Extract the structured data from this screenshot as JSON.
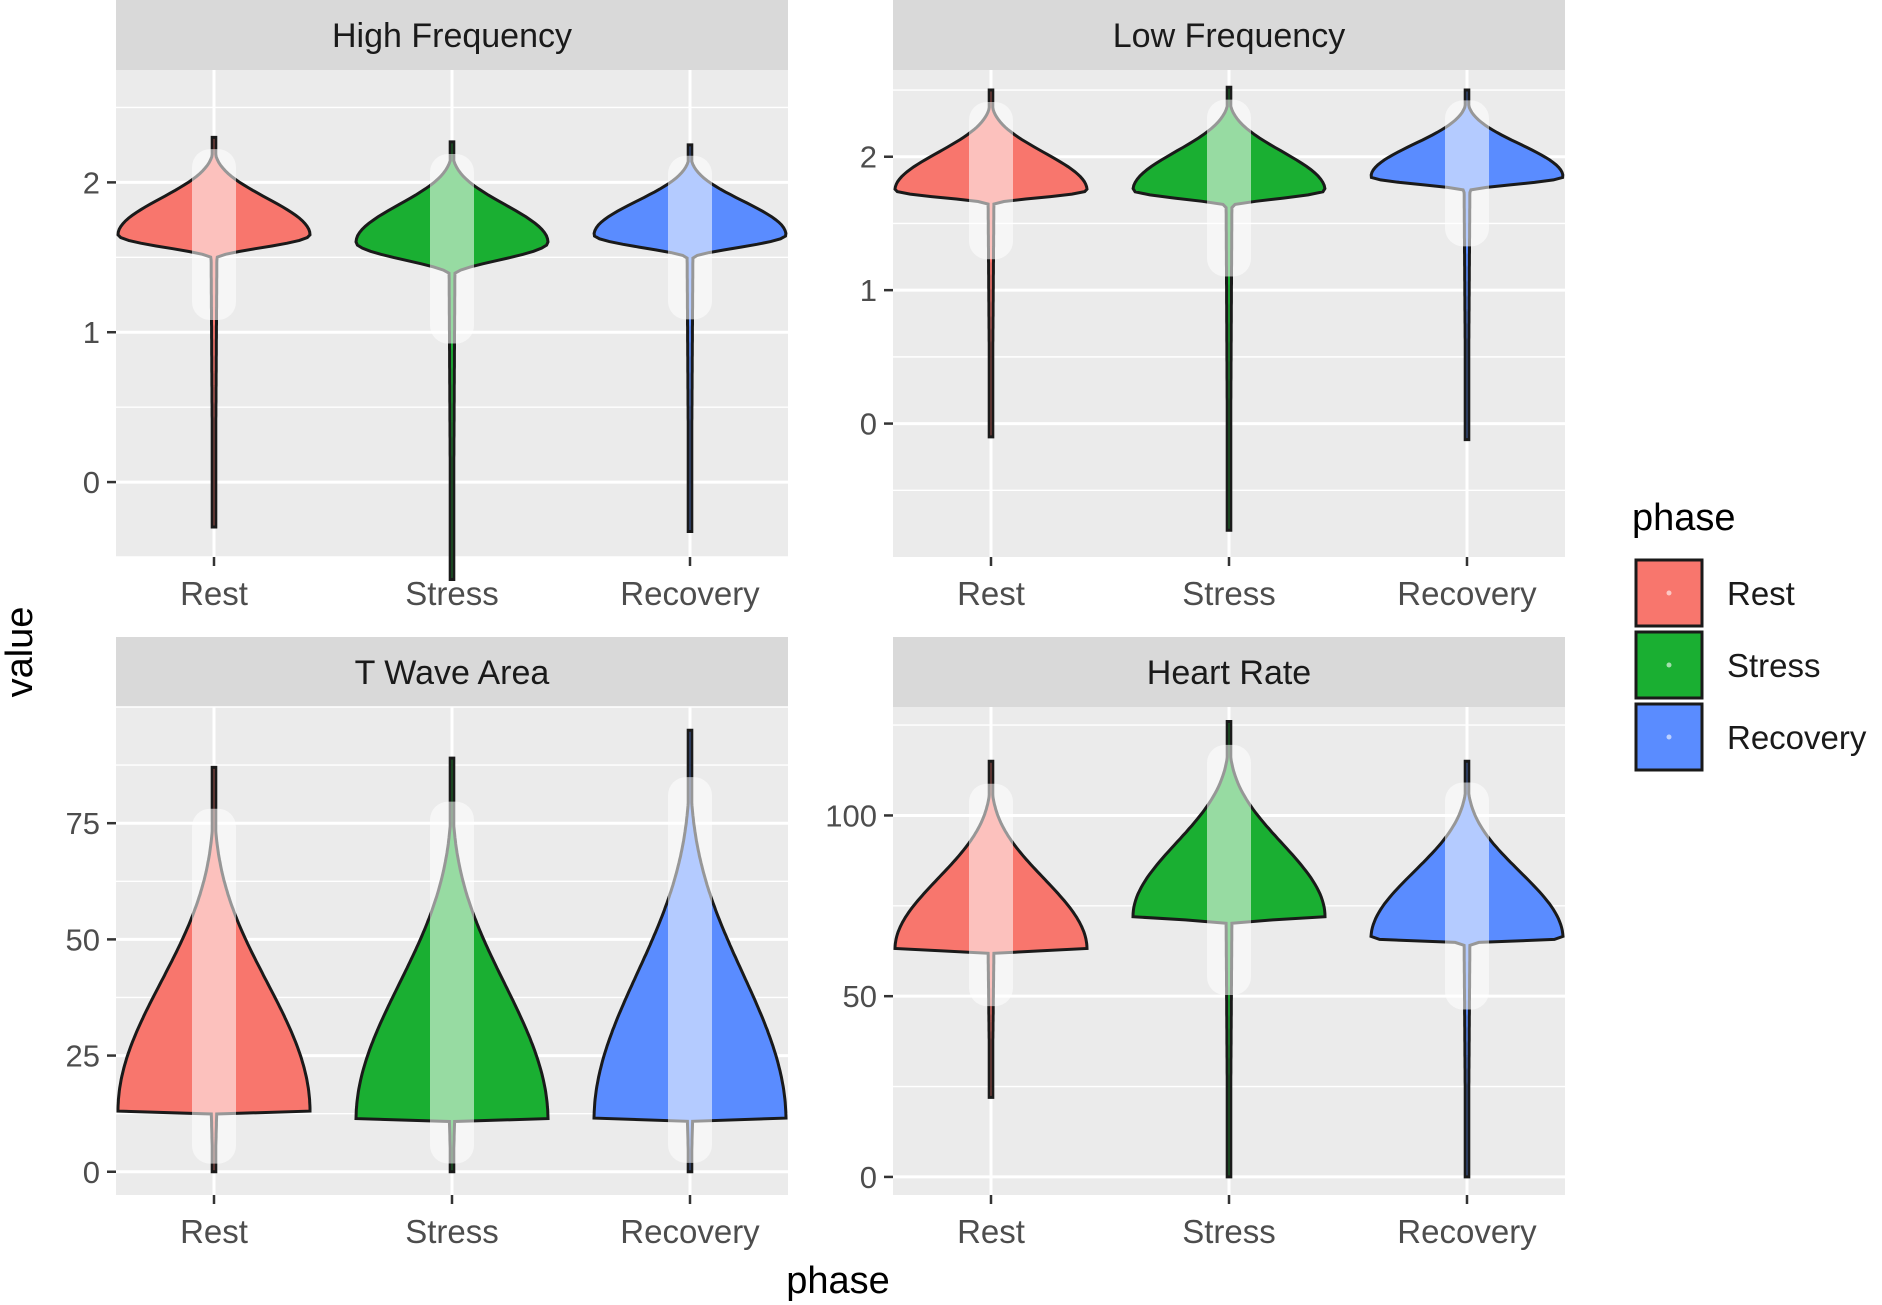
{
  "chart_data": {
    "type": "violin",
    "xlabel": "phase",
    "ylabel": "value",
    "categories": [
      "Rest",
      "Stress",
      "Recovery"
    ],
    "legend": {
      "title": "phase",
      "position": "right",
      "items": [
        {
          "label": "Rest",
          "color": "#f8766d"
        },
        {
          "label": "Stress",
          "color": "#1aaf32"
        },
        {
          "label": "Recovery",
          "color": "#5a8cff"
        }
      ]
    },
    "grid": true,
    "panels": [
      {
        "title": "High Frequency",
        "ylim": [
          -0.5,
          2.75
        ],
        "yticks": [
          0,
          1,
          2
        ],
        "tick_labels": [
          "0",
          "1",
          "2"
        ],
        "series": [
          {
            "category": "Rest",
            "min": -0.3,
            "max": 2.3,
            "mode": 1.65,
            "median": 1.55
          },
          {
            "category": "Stress",
            "min": -0.65,
            "max": 2.27,
            "mode": 1.6,
            "median": 1.45
          },
          {
            "category": "Recovery",
            "min": -0.33,
            "max": 2.25,
            "mode": 1.65,
            "median": 1.55
          }
        ]
      },
      {
        "title": "Low Frequency",
        "ylim": [
          -1.0,
          2.65
        ],
        "yticks": [
          0,
          1,
          2
        ],
        "tick_labels": [
          "0",
          "1",
          "2"
        ],
        "series": [
          {
            "category": "Rest",
            "min": -0.1,
            "max": 2.5,
            "mode": 1.75,
            "median": 1.7
          },
          {
            "category": "Stress",
            "min": -0.8,
            "max": 2.52,
            "mode": 1.75,
            "median": 1.7
          },
          {
            "category": "Recovery",
            "min": -0.12,
            "max": 2.5,
            "mode": 1.85,
            "median": 1.8
          }
        ]
      },
      {
        "title": "T Wave Area",
        "ylim": [
          -5,
          100
        ],
        "yticks": [
          0,
          25,
          50,
          75
        ],
        "tick_labels": [
          "0",
          "25",
          "50",
          "75"
        ],
        "series": [
          {
            "category": "Rest",
            "min": 0,
            "max": 87,
            "mode": 13,
            "median": 16
          },
          {
            "category": "Stress",
            "min": 0,
            "max": 89,
            "mode": 11,
            "median": 15
          },
          {
            "category": "Recovery",
            "min": 0,
            "max": 95,
            "mode": 11,
            "median": 15
          }
        ]
      },
      {
        "title": "Heart Rate",
        "ylim": [
          -5,
          130
        ],
        "yticks": [
          0,
          50,
          100
        ],
        "tick_labels": [
          "0",
          "50",
          "100"
        ],
        "series": [
          {
            "category": "Rest",
            "min": 22,
            "max": 115,
            "mode": 63,
            "median": 64
          },
          {
            "category": "Stress",
            "min": 0,
            "max": 126,
            "mode": 72,
            "median": 73
          },
          {
            "category": "Recovery",
            "min": 0,
            "max": 115,
            "mode": 66,
            "median": 67
          }
        ]
      }
    ]
  }
}
